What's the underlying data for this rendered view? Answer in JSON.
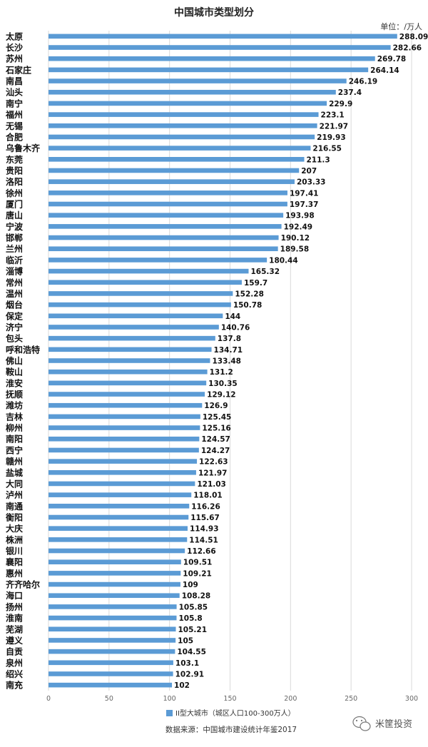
{
  "chart_data": {
    "type": "bar",
    "orientation": "horizontal",
    "title": "中国城市类型划分",
    "unit_label": "单位：/万人",
    "series": [
      {
        "name": "II型大城市（城区人口100-300万人）",
        "color": "#5b9bd5"
      }
    ],
    "categories": [
      "太原",
      "长沙",
      "苏州",
      "石家庄",
      "南昌",
      "汕头",
      "南宁",
      "福州",
      "无锡",
      "合肥",
      "乌鲁木齐",
      "东莞",
      "贵阳",
      "洛阳",
      "徐州",
      "厦门",
      "唐山",
      "宁波",
      "邯郸",
      "兰州",
      "临沂",
      "淄博",
      "常州",
      "温州",
      "烟台",
      "保定",
      "济宁",
      "包头",
      "呼和浩特",
      "佛山",
      "鞍山",
      "淮安",
      "抚顺",
      "潍坊",
      "吉林",
      "柳州",
      "南阳",
      "西宁",
      "赣州",
      "盐城",
      "大同",
      "泸州",
      "南通",
      "衡阳",
      "大庆",
      "株洲",
      "银川",
      "襄阳",
      "惠州",
      "齐齐哈尔",
      "海口",
      "扬州",
      "淮南",
      "芜湖",
      "遵义",
      "自贡",
      "泉州",
      "绍兴",
      "南充"
    ],
    "values": [
      288.09,
      282.66,
      269.78,
      264.14,
      246.19,
      237.4,
      229.9,
      223.1,
      221.97,
      219.93,
      216.55,
      211.3,
      207,
      203.33,
      197.41,
      197.37,
      193.98,
      192.49,
      190.12,
      189.58,
      180.44,
      165.32,
      159.7,
      152.28,
      150.78,
      144,
      140.76,
      137.8,
      134.71,
      133.48,
      131.2,
      130.35,
      129.12,
      126.9,
      125.45,
      125.16,
      124.57,
      124.27,
      122.63,
      121.97,
      121.03,
      118.01,
      116.26,
      115.67,
      114.93,
      114.51,
      112.66,
      109.51,
      109.21,
      109,
      108.28,
      105.85,
      105.8,
      105.21,
      105,
      104.55,
      103.1,
      102.91,
      102
    ],
    "value_labels": [
      "288.09",
      "282.66",
      "269.78",
      "264.14",
      "246.19",
      "237.4",
      "229.9",
      "223.1",
      "221.97",
      "219.93",
      "216.55",
      "211.3",
      "207",
      "203.33",
      "197.41",
      "197.37",
      "193.98",
      "192.49",
      "190.12",
      "189.58",
      "180.44",
      "165.32",
      "159.7",
      "152.28",
      "150.78",
      "144",
      "140.76",
      "137.8",
      "134.71",
      "133.48",
      "131.2",
      "130.35",
      "129.12",
      "126.9",
      "125.45",
      "125.16",
      "124.57",
      "124.27",
      "122.63",
      "121.97",
      "121.03",
      "118.01",
      "116.26",
      "115.67",
      "114.93",
      "114.51",
      "112.66",
      "109.51",
      "109.21",
      "109",
      "108.28",
      "105.85",
      "105.8",
      "105.21",
      "105",
      "104.55",
      "103.1",
      "102.91",
      "102"
    ],
    "xlim": [
      0,
      300
    ],
    "xticks": [
      0,
      50,
      100,
      150,
      200,
      250,
      300
    ],
    "grid": true,
    "legend_position": "bottom"
  },
  "source_text": "数据来源：中国城市建设统计年鉴2017",
  "watermark": {
    "text": "米筐投资",
    "icon": "wechat-icon"
  }
}
